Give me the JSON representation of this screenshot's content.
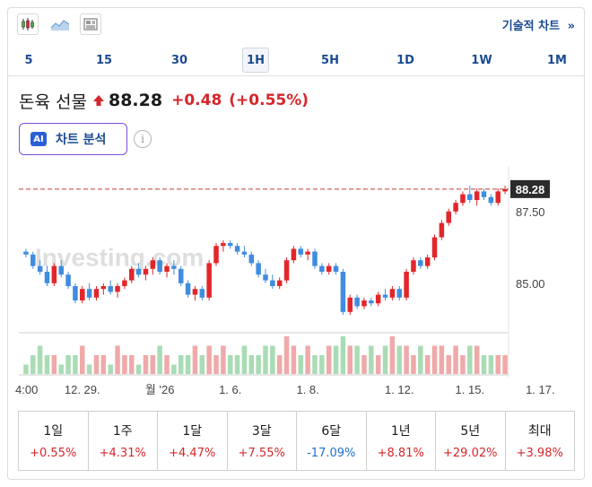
{
  "toolbar": {
    "icons": [
      "candlestick-icon",
      "area-chart-icon",
      "news-icon"
    ],
    "tech_chart_label": "기술적 차트",
    "tech_chart_arrow": "»"
  },
  "intervals": [
    "5",
    "15",
    "30",
    "1H",
    "5H",
    "1D",
    "1W",
    "1M"
  ],
  "active_interval": "1H",
  "quote": {
    "name": "돈육 선물",
    "price": "88.28",
    "change": "+0.48",
    "change_pct": "(+0.55%)",
    "direction": "up"
  },
  "ai_button": {
    "badge": "AI",
    "label": "차트 분석"
  },
  "info_icon": "i",
  "watermark": "Investing.com",
  "chart_data": {
    "type": "candlestick",
    "current_price": 88.28,
    "current_price_label": "88.28",
    "y_ticks": [
      {
        "value": 87.5,
        "label": "87.50"
      },
      {
        "value": 85.0,
        "label": "85.00"
      }
    ],
    "ylim": [
      83.4,
      88.9
    ],
    "x_ticks": [
      {
        "index": 0,
        "label": "4:00"
      },
      {
        "index": 8,
        "label": "12. 29."
      },
      {
        "index": 19,
        "label": "월 '26"
      },
      {
        "index": 29,
        "label": "1. 6."
      },
      {
        "index": 40,
        "label": "1. 8."
      },
      {
        "index": 53,
        "label": "1. 12."
      },
      {
        "index": 63,
        "label": "1. 15."
      },
      {
        "index": 73,
        "label": "1. 17."
      }
    ],
    "ohlc": [
      [
        86.1,
        86.2,
        85.9,
        86.0
      ],
      [
        86.0,
        86.1,
        85.5,
        85.6
      ],
      [
        85.6,
        85.8,
        85.3,
        85.4
      ],
      [
        85.4,
        85.6,
        84.9,
        85.0
      ],
      [
        85.0,
        85.7,
        84.9,
        85.6
      ],
      [
        85.6,
        85.8,
        85.2,
        85.3
      ],
      [
        85.3,
        85.4,
        84.8,
        84.9
      ],
      [
        84.9,
        85.0,
        84.3,
        84.4
      ],
      [
        84.4,
        84.9,
        84.3,
        84.8
      ],
      [
        84.8,
        85.0,
        84.4,
        84.5
      ],
      [
        84.5,
        84.9,
        84.4,
        84.8
      ],
      [
        84.8,
        85.0,
        84.6,
        84.9
      ],
      [
        84.9,
        85.1,
        84.6,
        84.7
      ],
      [
        84.7,
        85.0,
        84.5,
        84.9
      ],
      [
        84.9,
        85.2,
        84.8,
        85.1
      ],
      [
        85.1,
        85.6,
        85.0,
        85.5
      ],
      [
        85.5,
        85.7,
        85.2,
        85.3
      ],
      [
        85.3,
        85.6,
        85.1,
        85.5
      ],
      [
        85.5,
        85.9,
        85.3,
        85.8
      ],
      [
        85.8,
        85.9,
        85.3,
        85.4
      ],
      [
        85.4,
        85.7,
        85.2,
        85.6
      ],
      [
        85.6,
        85.8,
        85.3,
        85.5
      ],
      [
        85.5,
        85.6,
        84.9,
        85.0
      ],
      [
        85.0,
        85.1,
        84.5,
        84.6
      ],
      [
        84.6,
        84.9,
        84.4,
        84.8
      ],
      [
        84.8,
        84.9,
        84.4,
        84.5
      ],
      [
        84.5,
        85.8,
        84.4,
        85.7
      ],
      [
        85.7,
        86.4,
        85.6,
        86.3
      ],
      [
        86.3,
        86.5,
        86.1,
        86.4
      ],
      [
        86.4,
        86.5,
        86.2,
        86.3
      ],
      [
        86.3,
        86.4,
        86.0,
        86.1
      ],
      [
        86.1,
        86.3,
        85.9,
        86.0
      ],
      [
        86.0,
        86.1,
        85.6,
        85.7
      ],
      [
        85.7,
        85.8,
        85.2,
        85.3
      ],
      [
        85.3,
        85.5,
        85.0,
        85.1
      ],
      [
        85.1,
        85.3,
        84.8,
        84.9
      ],
      [
        84.9,
        85.2,
        84.8,
        85.1
      ],
      [
        85.1,
        85.9,
        85.0,
        85.8
      ],
      [
        85.8,
        86.3,
        85.7,
        86.2
      ],
      [
        86.2,
        86.3,
        85.9,
        86.0
      ],
      [
        86.0,
        86.2,
        85.8,
        86.1
      ],
      [
        86.1,
        86.2,
        85.5,
        85.6
      ],
      [
        85.6,
        85.7,
        85.3,
        85.4
      ],
      [
        85.4,
        85.7,
        85.3,
        85.6
      ],
      [
        85.6,
        85.7,
        85.3,
        85.4
      ],
      [
        85.4,
        85.5,
        83.9,
        84.0
      ],
      [
        84.0,
        84.6,
        83.9,
        84.5
      ],
      [
        84.5,
        84.6,
        84.1,
        84.2
      ],
      [
        84.2,
        84.5,
        84.1,
        84.4
      ],
      [
        84.4,
        84.5,
        84.2,
        84.3
      ],
      [
        84.3,
        84.7,
        84.2,
        84.6
      ],
      [
        84.6,
        84.8,
        84.4,
        84.5
      ],
      [
        84.5,
        84.9,
        84.4,
        84.8
      ],
      [
        84.8,
        84.9,
        84.4,
        84.5
      ],
      [
        84.5,
        85.5,
        84.4,
        85.4
      ],
      [
        85.4,
        85.9,
        85.3,
        85.8
      ],
      [
        85.8,
        85.9,
        85.5,
        85.6
      ],
      [
        85.6,
        86.0,
        85.5,
        85.9
      ],
      [
        85.9,
        86.7,
        85.8,
        86.6
      ],
      [
        86.6,
        87.2,
        86.5,
        87.1
      ],
      [
        87.1,
        87.6,
        87.0,
        87.5
      ],
      [
        87.5,
        87.9,
        87.4,
        87.8
      ],
      [
        87.8,
        88.2,
        87.7,
        88.1
      ],
      [
        88.1,
        88.4,
        87.8,
        87.9
      ],
      [
        87.9,
        88.3,
        87.7,
        88.2
      ],
      [
        88.2,
        88.3,
        87.9,
        88.0
      ],
      [
        88.0,
        88.1,
        87.7,
        87.8
      ],
      [
        87.8,
        88.3,
        87.7,
        88.2
      ],
      [
        88.2,
        88.4,
        88.1,
        88.28
      ]
    ],
    "volume": [
      1,
      2,
      3,
      2,
      2,
      1,
      2,
      2,
      3,
      1,
      2,
      2,
      1,
      3,
      2,
      2,
      1,
      2,
      2,
      3,
      2,
      1,
      2,
      2,
      3,
      2,
      3,
      2,
      3,
      2,
      2,
      3,
      2,
      2,
      3,
      3,
      2,
      4,
      3,
      2,
      3,
      2,
      2,
      3,
      3,
      4,
      3,
      3,
      2,
      3,
      2,
      3,
      4,
      3,
      3,
      2,
      3,
      2,
      3,
      3,
      2,
      3,
      2,
      3,
      3,
      2,
      2,
      2,
      2
    ],
    "colors": {
      "up": "#e2262b",
      "down": "#3f8ce0",
      "vol_up": "#f0a9a9",
      "vol_down": "#a9dcb4",
      "price_line": "#c23b3b"
    }
  },
  "performance": [
    {
      "period": "1일",
      "value": "+0.55%",
      "sign": "up"
    },
    {
      "period": "1주",
      "value": "+4.31%",
      "sign": "up"
    },
    {
      "period": "1달",
      "value": "+4.47%",
      "sign": "up"
    },
    {
      "period": "3달",
      "value": "+7.55%",
      "sign": "up"
    },
    {
      "period": "6달",
      "value": "-17.09%",
      "sign": "down"
    },
    {
      "period": "1년",
      "value": "+8.81%",
      "sign": "up"
    },
    {
      "period": "5년",
      "value": "+29.02%",
      "sign": "up"
    },
    {
      "period": "최대",
      "value": "+3.98%",
      "sign": "up"
    }
  ],
  "colors": {
    "up": "#d6262b",
    "down": "#1f6fd1",
    "link": "#1b4b91"
  }
}
